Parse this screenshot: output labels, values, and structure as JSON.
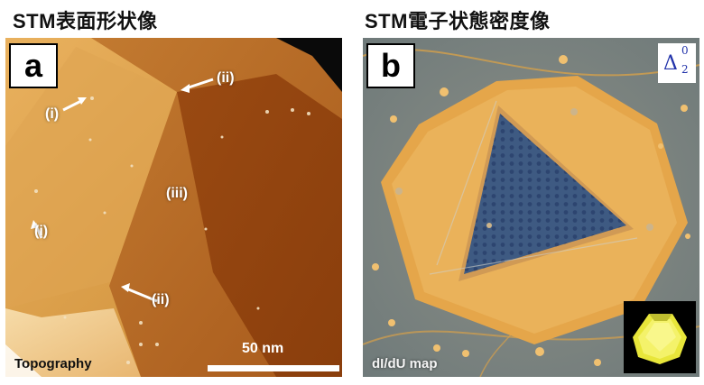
{
  "headings": {
    "left": "STM表面形状像",
    "right": "STM電子状態密度像"
  },
  "panel_a": {
    "letter": "a",
    "labels": {
      "i_top": "(i)",
      "i_bottom": "(i)",
      "ii_top": "(ii)",
      "iii": "(iii)",
      "ii_bottom": "(ii)"
    },
    "caption": "Topography",
    "scale_label": "50 nm"
  },
  "panel_b": {
    "letter": "b",
    "caption": "dI/dU map",
    "delta": {
      "symbol": "Δ",
      "superscript": "0",
      "subscript": "2"
    }
  },
  "colors": {
    "topo_bright": "#e8b060",
    "topo_dark": "#a04a10",
    "map_orange": "#e7a94d",
    "map_blue": "#3e5a82",
    "inset_yellow": "#f0ee50"
  }
}
